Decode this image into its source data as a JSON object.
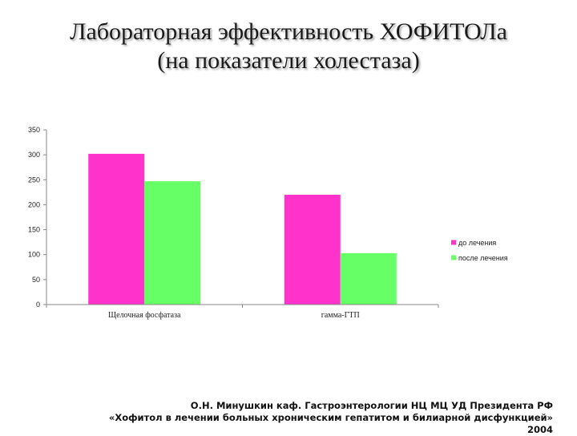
{
  "title": {
    "line1": "Лабораторная эффективность ХОФИТОЛа",
    "line2": "(на показатели холестаза)"
  },
  "footer": {
    "line1": "О.Н. Минушкин каф. Гастроэнтерологии НЦ МЦ УД Президента РФ",
    "line2": "«Хофитол в лечении больных хроническим гепатитом и билиарной дисфункцией»",
    "line3": "2004"
  },
  "chart_data": {
    "type": "bar",
    "title": "",
    "xlabel": "",
    "ylabel": "",
    "categories": [
      "Щелочная фосфатаза",
      "гамма-ГТП"
    ],
    "series": [
      {
        "name": "до лечения",
        "values": [
          302,
          220
        ],
        "color": "#ff33cc"
      },
      {
        "name": "после лечения",
        "values": [
          247,
          103
        ],
        "color": "#66ff66"
      }
    ],
    "ylim": [
      0,
      350
    ],
    "yticks": [
      0,
      50,
      100,
      150,
      200,
      250,
      300,
      350
    ],
    "grid": false,
    "legend": "right"
  }
}
